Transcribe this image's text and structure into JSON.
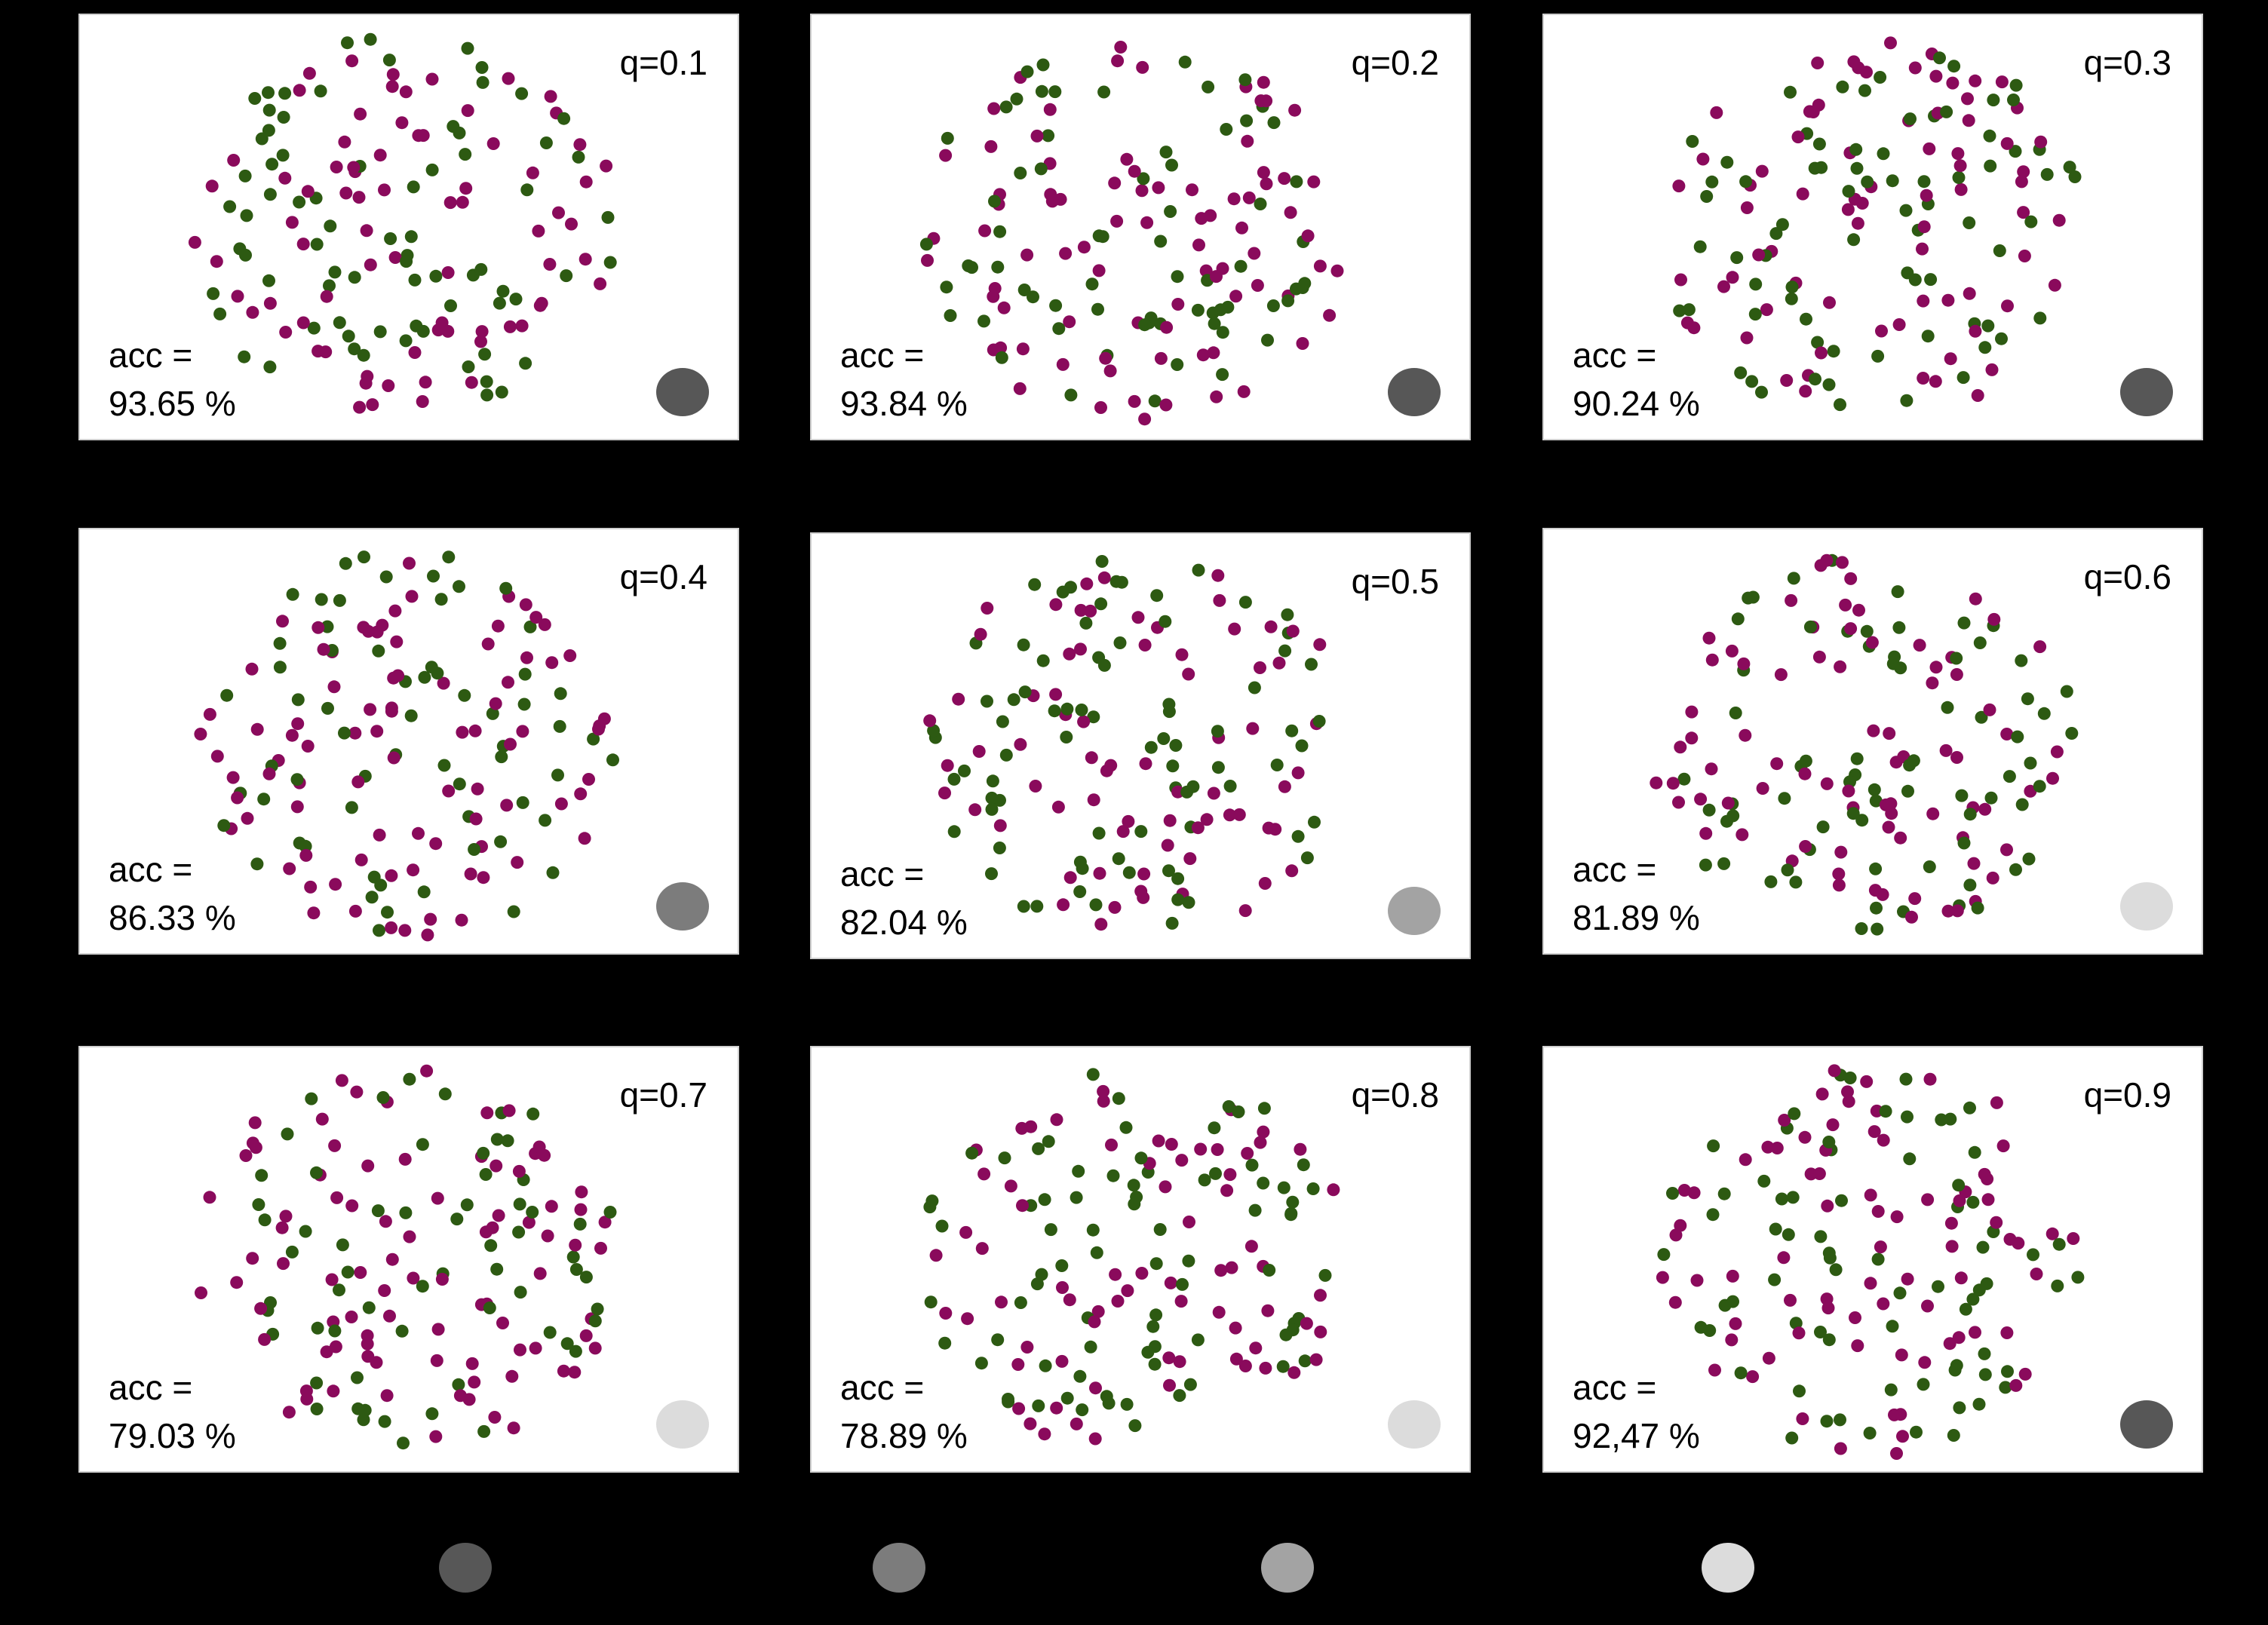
{
  "colors": {
    "background": "#000000",
    "panel": "#ffffff",
    "dot_magenta": "#8a0a5c",
    "dot_green": "#2d5a12",
    "text": "#000000"
  },
  "panels": [
    {
      "q": "q=0.1",
      "acc_label": "acc =",
      "acc_value": "93.65 %",
      "indicator": "#575757"
    },
    {
      "q": "q=0.2",
      "acc_label": "acc =",
      "acc_value": "93.84 %",
      "indicator": "#575757"
    },
    {
      "q": "q=0.3",
      "acc_label": "acc =",
      "acc_value": "90.24 %",
      "indicator": "#575757"
    },
    {
      "q": "q=0.4",
      "acc_label": "acc =",
      "acc_value": "86.33 %",
      "indicator": "#7c7c7c"
    },
    {
      "q": "q=0.5",
      "acc_label": "acc =",
      "acc_value": "82.04 %",
      "indicator": "#a3a3a3"
    },
    {
      "q": "q=0.6",
      "acc_label": "acc =",
      "acc_value": "81.89 %",
      "indicator": "#dcdcdc"
    },
    {
      "q": "q=0.7",
      "acc_label": "acc =",
      "acc_value": "79.03 %",
      "indicator": "#dcdcdc"
    },
    {
      "q": "q=0.8",
      "acc_label": "acc =",
      "acc_value": "78.89 %",
      "indicator": "#dcdcdc"
    },
    {
      "q": "q=0.9",
      "acc_label": "acc =",
      "acc_value": "92,47 %",
      "indicator": "#575757"
    }
  ],
  "legend": [
    {
      "color": "#575757"
    },
    {
      "color": "#7c7c7c"
    },
    {
      "color": "#a3a3a3"
    },
    {
      "color": "#dcdcdc"
    }
  ]
}
